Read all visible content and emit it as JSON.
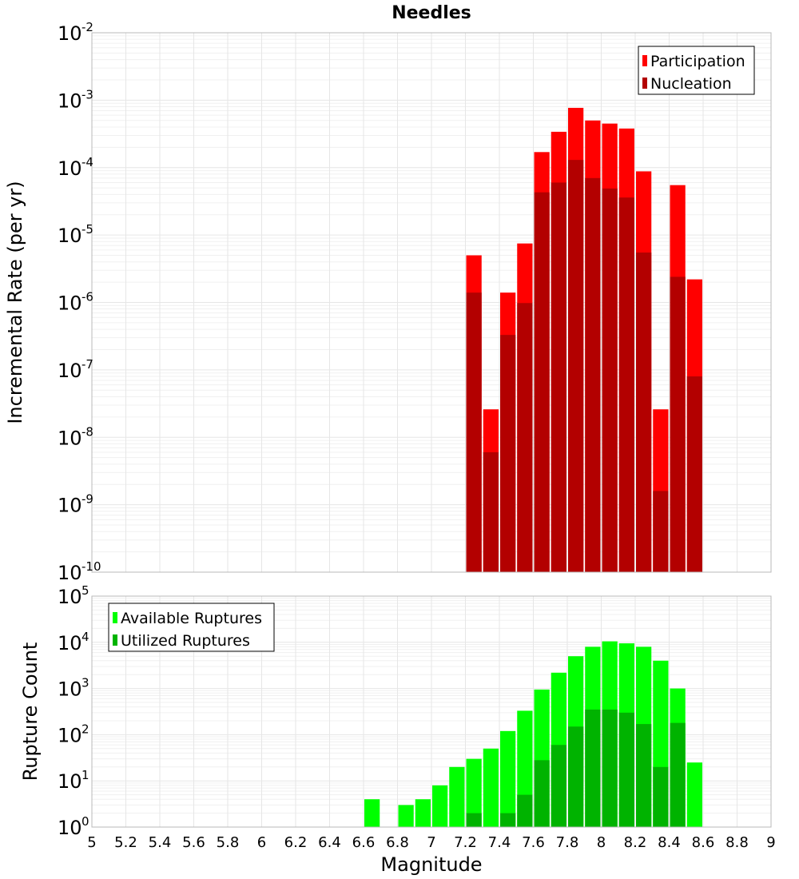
{
  "chart_data": [
    {
      "type": "bar",
      "title": "Needles",
      "xlabel": "",
      "ylabel": "Incremental Rate (per yr)",
      "yscale": "log",
      "ylim": [
        1e-10,
        0.01
      ],
      "xlim": [
        5,
        9
      ],
      "x": [
        7.25,
        7.35,
        7.45,
        7.55,
        7.65,
        7.75,
        7.85,
        7.95,
        8.05,
        8.15,
        8.25,
        8.35,
        8.45,
        8.55
      ],
      "series": [
        {
          "name": "Participation",
          "color": "#ff0000",
          "values": [
            5e-06,
            2.6e-08,
            1.4e-06,
            7.5e-06,
            0.00017,
            0.00034,
            0.00077,
            0.0005,
            0.00045,
            0.00038,
            8.8e-05,
            2.6e-08,
            5.5e-05,
            2.2e-06
          ]
        },
        {
          "name": "Nucleation",
          "color": "#b30000",
          "values": [
            1.4e-06,
            6e-09,
            3.3e-07,
            9.8e-07,
            4.3e-05,
            6e-05,
            0.00013,
            7e-05,
            4.9e-05,
            3.6e-05,
            5.5e-06,
            1.6e-09,
            2.4e-06,
            8e-08
          ]
        }
      ],
      "legend": "top-right",
      "grid": true
    },
    {
      "type": "bar",
      "title": "",
      "xlabel": "Magnitude",
      "ylabel": "Rupture Count",
      "yscale": "log",
      "ylim": [
        1,
        100000.0
      ],
      "xlim": [
        5,
        9
      ],
      "x": [
        6.65,
        6.85,
        6.95,
        7.05,
        7.15,
        7.25,
        7.35,
        7.45,
        7.55,
        7.65,
        7.75,
        7.85,
        7.95,
        8.05,
        8.15,
        8.25,
        8.35,
        8.45,
        8.55
      ],
      "series": [
        {
          "name": "Available Ruptures",
          "color": "#00ff00",
          "values": [
            4,
            3,
            4,
            8,
            20,
            30,
            50,
            120,
            330,
            950,
            2200,
            5000,
            8000,
            10500,
            9500,
            8000,
            4000,
            1000,
            25
          ]
        },
        {
          "name": "Utilized Ruptures",
          "color": "#00b300",
          "values": [
            null,
            null,
            null,
            null,
            null,
            2,
            1,
            2,
            5,
            28,
            60,
            150,
            350,
            350,
            300,
            170,
            20,
            180,
            1
          ]
        }
      ],
      "legend": "top-left",
      "grid": true
    }
  ],
  "ticks": {
    "x": [
      "5",
      "5.2",
      "5.4",
      "5.6",
      "5.8",
      "6",
      "6.2",
      "6.4",
      "6.6",
      "6.8",
      "7",
      "7.2",
      "7.4",
      "7.6",
      "7.8",
      "8",
      "8.2",
      "8.4",
      "8.6",
      "8.8",
      "9"
    ],
    "y_top_base": "10",
    "y_top_exponents": [
      "-2",
      "-3",
      "-4",
      "-5",
      "-6",
      "-7",
      "-8",
      "-9",
      "-10"
    ],
    "y_bottom_base": "10",
    "y_bottom_exponents": [
      "5",
      "4",
      "3",
      "2",
      "1",
      "0"
    ]
  }
}
